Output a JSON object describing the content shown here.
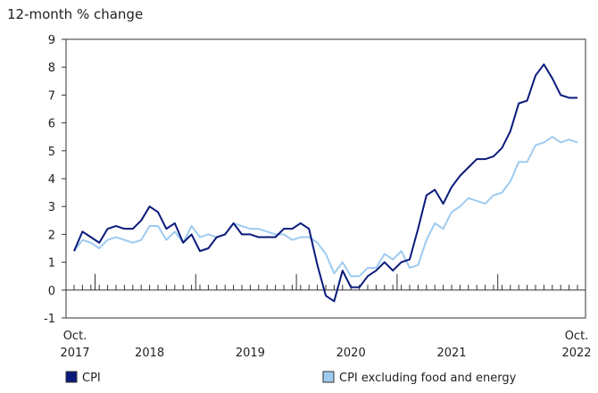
{
  "chart_data": {
    "type": "line",
    "title": "",
    "ylabel": "12-month % change",
    "xlabel": "",
    "ylim": [
      -1,
      9
    ],
    "yticks": [
      -1,
      0,
      1,
      2,
      3,
      4,
      5,
      6,
      7,
      8,
      9
    ],
    "x_start": "2017-10",
    "x_end": "2022-10",
    "x_tick_labels": [
      {
        "month_index": 0,
        "line1": "Oct.",
        "line2": "2017"
      },
      {
        "month_index": 9,
        "line1": "",
        "line2": "2018"
      },
      {
        "month_index": 21,
        "line1": "",
        "line2": "2019"
      },
      {
        "month_index": 33,
        "line1": "",
        "line2": "2020"
      },
      {
        "month_index": 45,
        "line1": "",
        "line2": "2021"
      },
      {
        "month_index": 60,
        "line1": "Oct.",
        "line2": "2022"
      }
    ],
    "year_boundaries": [
      3,
      15,
      27,
      39,
      51
    ],
    "grid": false,
    "legend_position": "bottom",
    "series": [
      {
        "name": "CPI",
        "color": "#0a1a7a",
        "values": [
          1.4,
          2.1,
          1.9,
          1.7,
          2.2,
          2.3,
          2.2,
          2.2,
          2.5,
          3.0,
          2.8,
          2.2,
          2.4,
          1.7,
          2.0,
          1.4,
          1.5,
          1.9,
          2.0,
          2.4,
          2.0,
          2.0,
          1.9,
          1.9,
          1.9,
          2.2,
          2.2,
          2.4,
          2.2,
          0.9,
          -0.2,
          -0.4,
          0.7,
          0.1,
          0.1,
          0.5,
          0.7,
          1.0,
          0.7,
          1.0,
          1.1,
          2.2,
          3.4,
          3.6,
          3.1,
          3.7,
          4.1,
          4.4,
          4.7,
          4.7,
          4.8,
          5.1,
          5.7,
          6.7,
          6.8,
          7.7,
          8.1,
          7.6,
          7.0,
          6.9,
          6.9
        ]
      },
      {
        "name": "CPI excluding food and energy",
        "color": "#9ecbf0",
        "values": [
          1.4,
          1.8,
          1.7,
          1.5,
          1.8,
          1.9,
          1.8,
          1.7,
          1.8,
          2.3,
          2.3,
          1.8,
          2.1,
          1.7,
          2.3,
          1.9,
          2.0,
          1.9,
          2.0,
          2.4,
          2.3,
          2.2,
          2.2,
          2.1,
          2.0,
          2.0,
          1.8,
          1.9,
          1.9,
          1.7,
          1.3,
          0.6,
          1.0,
          0.5,
          0.5,
          0.8,
          0.8,
          1.3,
          1.1,
          1.4,
          0.8,
          0.9,
          1.8,
          2.4,
          2.2,
          2.8,
          3.0,
          3.3,
          3.2,
          3.1,
          3.4,
          3.5,
          3.9,
          4.6,
          4.6,
          5.2,
          5.3,
          5.5,
          5.3,
          5.4,
          5.3
        ]
      }
    ]
  }
}
